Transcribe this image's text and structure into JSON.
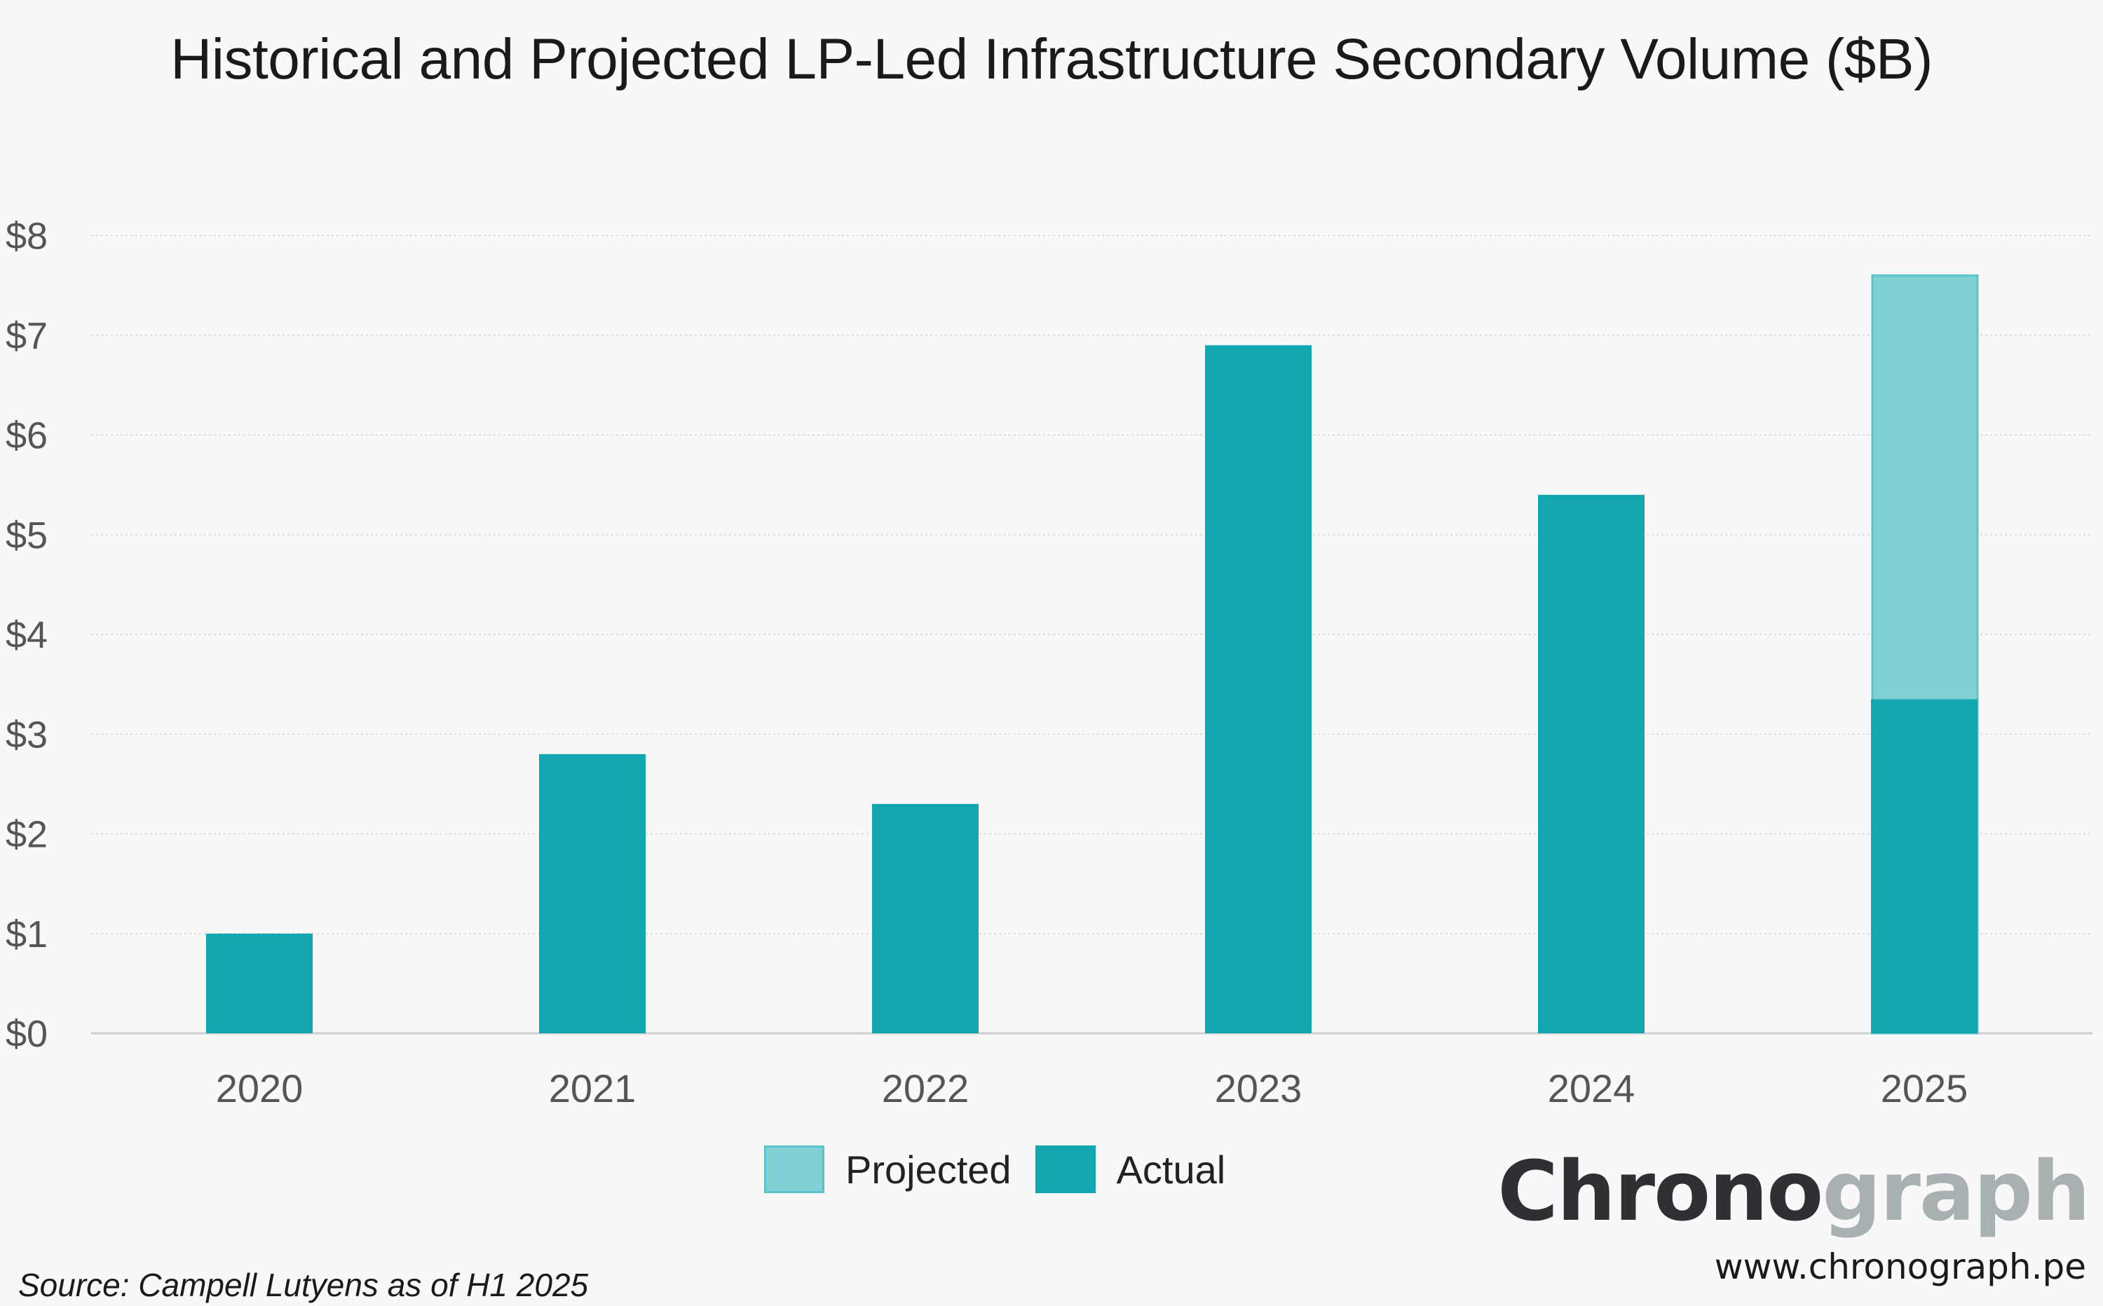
{
  "chart_data": {
    "type": "bar",
    "title": "Historical and Projected LP-Led Infrastructure Secondary Volume ($B)",
    "xlabel": "",
    "ylabel": "",
    "categories": [
      "2020",
      "2021",
      "2022",
      "2023",
      "2024",
      "2025"
    ],
    "series": [
      {
        "name": "Actual",
        "values": [
          1.0,
          2.8,
          2.3,
          6.9,
          5.4,
          3.35
        ],
        "color": "#12a7b0"
      },
      {
        "name": "Projected",
        "values": [
          null,
          null,
          null,
          null,
          null,
          7.6
        ],
        "color": "#80d1d3"
      }
    ],
    "ylim": [
      0,
      8
    ],
    "yticks": [
      0,
      1,
      2,
      3,
      4,
      5,
      6,
      7,
      8
    ],
    "ytick_labels": [
      "$0",
      "$1",
      "$2",
      "$3",
      "$4",
      "$5",
      "$6",
      "$7",
      "$8"
    ],
    "grid": true,
    "legend_position": "bottom-center",
    "legend": [
      "Projected",
      "Actual"
    ]
  },
  "legend": {
    "projected_label": "Projected",
    "actual_label": "Actual"
  },
  "branding": {
    "logo_dark": "Chrono",
    "logo_light": "graph",
    "logo_dark_color": "#2e3033",
    "logo_light_color": "#a8b0b2",
    "url": "www.chronograph.pe"
  },
  "source": "Source: Campell Lutyens as of H1 2025"
}
